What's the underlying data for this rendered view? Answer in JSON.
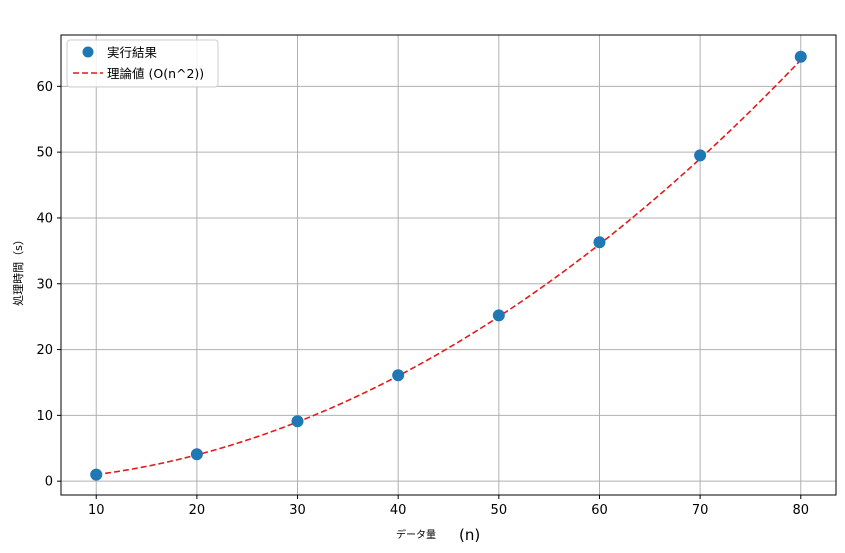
{
  "chart_data": {
    "type": "scatter",
    "title": "",
    "xlabel_main": "データ量",
    "xlabel_unit": "(n)",
    "ylabel": "処理時間（s）",
    "xlim": [
      6.5,
      83.5
    ],
    "ylim": [
      -2.1,
      67.8
    ],
    "x_ticks": [
      10,
      20,
      30,
      40,
      50,
      60,
      70,
      80
    ],
    "y_ticks": [
      0,
      10,
      20,
      30,
      40,
      50,
      60
    ],
    "grid": true,
    "legend_position": "top-left",
    "series": [
      {
        "name": "実行結果",
        "kind": "points",
        "color": "#1f77b4",
        "x": [
          10,
          20,
          30,
          40,
          50,
          60,
          70,
          80
        ],
        "y": [
          1.0,
          4.1,
          9.1,
          16.1,
          25.2,
          36.3,
          49.5,
          64.5
        ]
      },
      {
        "name": "理論値 (O(n^2))",
        "kind": "dashed-line",
        "color": "#e41a1c",
        "formula": "0.01 * n^2",
        "x_range": [
          10,
          80
        ]
      }
    ]
  }
}
